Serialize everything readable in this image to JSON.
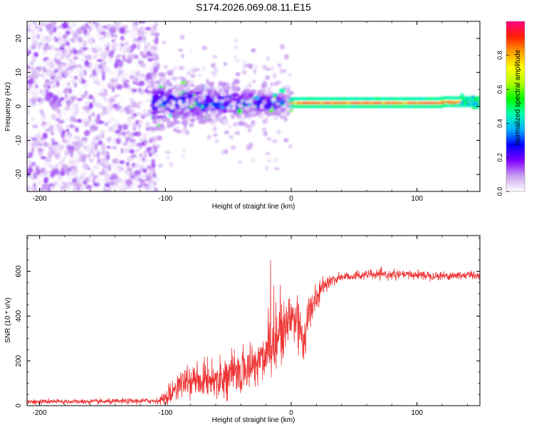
{
  "title": "S174.2026.069.08.11.E15",
  "chart_data": [
    {
      "type": "heatmap",
      "name": "spectrogram",
      "xlabel": "Height of straight line (km)",
      "ylabel": "Frequency (Hz)",
      "xlim": [
        -210,
        150
      ],
      "ylim": [
        -25,
        25
      ],
      "xticks": [
        -200,
        -100,
        0,
        100
      ],
      "xtick_labels": [
        "-200",
        "-100",
        "0",
        "100"
      ],
      "yticks": [
        -20,
        -10,
        0,
        10,
        20
      ],
      "ytick_labels": [
        "-20",
        "-10",
        "0",
        "10",
        "20"
      ],
      "colorbar": {
        "label": "Normalized spectral amplitude",
        "range": [
          0,
          1
        ],
        "ticks": [
          0.0,
          0.2,
          0.4,
          0.6,
          0.8
        ],
        "tick_labels": [
          "0.0",
          "0.2",
          "0.4",
          "0.6",
          "0.8"
        ],
        "colors": [
          "#ffffff",
          "#c9a0f0",
          "#8000ff",
          "#0000ff",
          "#00b0ff",
          "#00ffb0",
          "#00ff00",
          "#b0ff00",
          "#ffff00",
          "#ffa000",
          "#ff2000",
          "#ff0080"
        ]
      },
      "regions": [
        {
          "x": [
            -210,
            -110
          ],
          "freq_spread": 25,
          "amplitude": [
            0.0,
            0.15
          ],
          "description_key": "noise"
        },
        {
          "x": [
            -110,
            0
          ],
          "freq_center": 1,
          "freq_spread": 5,
          "amplitude": [
            0.1,
            0.35
          ]
        },
        {
          "x": [
            0,
            150
          ],
          "freq_center": 1,
          "freq_spread": 1.2,
          "amplitude": [
            0.5,
            0.95
          ]
        }
      ]
    },
    {
      "type": "line",
      "name": "snr",
      "xlabel": "Height of straight line (km)",
      "ylabel": "SNR (10 * v/v)",
      "xlim": [
        -210,
        150
      ],
      "ylim": [
        0,
        760
      ],
      "xticks": [
        -200,
        -100,
        0,
        100
      ],
      "xtick_labels": [
        "-200",
        "-100",
        "0",
        "100"
      ],
      "yticks": [
        0,
        200,
        400,
        600
      ],
      "ytick_labels": [
        "0",
        "200",
        "400",
        "600"
      ],
      "color": "#ee3333",
      "series_profile": {
        "x": [
          -210,
          -150,
          -105,
          -100,
          -90,
          -80,
          -60,
          -40,
          -30,
          -20,
          -14,
          -12,
          -10,
          -5,
          0,
          5,
          10,
          15,
          20,
          25,
          30,
          40,
          60,
          80,
          100,
          120,
          150
        ],
        "mean": [
          18,
          18,
          22,
          35,
          90,
          110,
          120,
          150,
          180,
          230,
          300,
          260,
          320,
          330,
          400,
          380,
          300,
          420,
          480,
          530,
          555,
          575,
          585,
          585,
          585,
          580,
          585
        ],
        "noise": [
          10,
          10,
          12,
          30,
          55,
          60,
          70,
          90,
          100,
          120,
          160,
          150,
          160,
          150,
          140,
          140,
          120,
          80,
          50,
          30,
          25,
          20,
          18,
          18,
          18,
          18,
          18
        ]
      }
    }
  ]
}
